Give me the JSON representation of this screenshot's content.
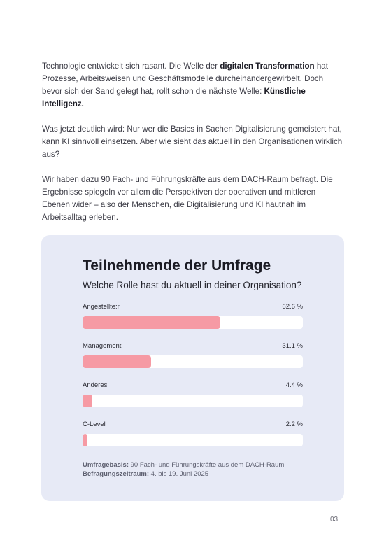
{
  "intro": {
    "p1": {
      "a": "Technologie entwickelt sich rasant. Die Welle der ",
      "b": "digitalen Transformation",
      "c": " hat Prozesse, Arbeitsweisen und Geschäftsmodelle durcheinandergewirbelt. Doch bevor sich der Sand gelegt hat, rollt schon die nächste Welle: ",
      "d": "Künstliche Intelligenz."
    },
    "p2": "Was jetzt deutlich wird: Nur wer die Basics in Sachen Digitalisierung gemeistert hat, kann KI sinnvoll einsetzen. Aber wie sieht das aktuell in den Organisationen wirklich aus?",
    "p3": "Wir haben dazu 90 Fach- und Führungskräfte aus dem DACH-Raum befragt. Die Ergebnisse spiegeln vor allem die Perspektiven der operativen und mittleren Ebenen wider – also der Menschen, die Digitalisierung und KI hautnah im Arbeitsalltag erleben."
  },
  "survey": {
    "title": "Teilnehmende der Umfrage",
    "question": "Welche Rolle hast du aktuell in deiner Organisation?",
    "rows": [
      {
        "label": "Angestellte:r",
        "percent_label": "62.6 %",
        "value": 62.6
      },
      {
        "label": "Management",
        "percent_label": "31.1 %",
        "value": 31.1
      },
      {
        "label": "Anderes",
        "percent_label": "4.4 %",
        "value": 4.4
      },
      {
        "label": "C-Level",
        "percent_label": "2.2 %",
        "value": 2.2
      }
    ],
    "footnote": {
      "basis_label": "Umfragebasis:",
      "basis_value": " 90 Fach- und Führungskräfte aus dem DACH-Raum",
      "period_label": "Befragungszeitraum:",
      "period_value": " 4. bis 19. Juni 2025"
    }
  },
  "page_number": "03",
  "colors": {
    "card_background": "#e7eaf6",
    "bar_fill": "#f69aa4",
    "bar_track": "#ffffff"
  },
  "chart_data": {
    "type": "bar",
    "orientation": "horizontal",
    "title": "Teilnehmende der Umfrage",
    "subtitle": "Welche Rolle hast du aktuell in deiner Organisation?",
    "categories": [
      "Angestellte:r",
      "Management",
      "Anderes",
      "C-Level"
    ],
    "values": [
      62.6,
      31.1,
      4.4,
      2.2
    ],
    "unit": "%",
    "xlim": [
      0,
      100
    ]
  }
}
